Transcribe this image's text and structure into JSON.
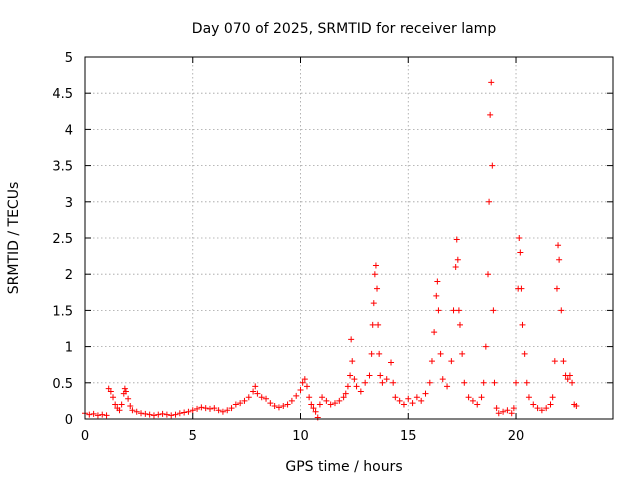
{
  "chart_data": {
    "type": "scatter",
    "title": "Day 070 of 2025, SRMTID for receiver lamp",
    "xlabel": "GPS time / hours",
    "ylabel": "SRMTID / TECUs",
    "xlim": [
      0,
      24.5
    ],
    "ylim": [
      0,
      5
    ],
    "xticks": [
      0,
      5,
      10,
      15,
      20
    ],
    "xtick_labels": [
      "0",
      "5",
      "10",
      "15",
      "20"
    ],
    "yticks": [
      0,
      0.5,
      1,
      1.5,
      2,
      2.5,
      3,
      3.5,
      4,
      4.5,
      5
    ],
    "ytick_labels": [
      "0",
      "0.5",
      "1",
      "1.5",
      "2",
      "2.5",
      "3",
      "3.5",
      "4",
      "4.5",
      "5"
    ],
    "grid": true,
    "marker": "+",
    "marker_color": "#ff0000",
    "series": [
      {
        "name": "lamp",
        "points": [
          [
            0.0,
            0.08
          ],
          [
            0.2,
            0.06
          ],
          [
            0.4,
            0.07
          ],
          [
            0.6,
            0.05
          ],
          [
            0.8,
            0.06
          ],
          [
            1.0,
            0.05
          ],
          [
            1.1,
            0.42
          ],
          [
            1.2,
            0.38
          ],
          [
            1.3,
            0.3
          ],
          [
            1.4,
            0.2
          ],
          [
            1.5,
            0.15
          ],
          [
            1.6,
            0.12
          ],
          [
            1.7,
            0.2
          ],
          [
            1.8,
            0.35
          ],
          [
            1.85,
            0.42
          ],
          [
            1.9,
            0.38
          ],
          [
            2.0,
            0.28
          ],
          [
            2.1,
            0.18
          ],
          [
            2.2,
            0.12
          ],
          [
            2.4,
            0.1
          ],
          [
            2.6,
            0.08
          ],
          [
            2.8,
            0.07
          ],
          [
            3.0,
            0.06
          ],
          [
            3.2,
            0.05
          ],
          [
            3.4,
            0.06
          ],
          [
            3.6,
            0.07
          ],
          [
            3.8,
            0.06
          ],
          [
            4.0,
            0.05
          ],
          [
            4.2,
            0.06
          ],
          [
            4.4,
            0.08
          ],
          [
            4.6,
            0.09
          ],
          [
            4.8,
            0.1
          ],
          [
            5.0,
            0.12
          ],
          [
            5.2,
            0.14
          ],
          [
            5.4,
            0.16
          ],
          [
            5.6,
            0.15
          ],
          [
            5.8,
            0.14
          ],
          [
            6.0,
            0.15
          ],
          [
            6.2,
            0.12
          ],
          [
            6.4,
            0.1
          ],
          [
            6.6,
            0.12
          ],
          [
            6.8,
            0.15
          ],
          [
            7.0,
            0.2
          ],
          [
            7.2,
            0.22
          ],
          [
            7.4,
            0.25
          ],
          [
            7.6,
            0.3
          ],
          [
            7.8,
            0.38
          ],
          [
            7.9,
            0.45
          ],
          [
            8.0,
            0.35
          ],
          [
            8.2,
            0.3
          ],
          [
            8.4,
            0.28
          ],
          [
            8.6,
            0.22
          ],
          [
            8.8,
            0.18
          ],
          [
            9.0,
            0.16
          ],
          [
            9.2,
            0.18
          ],
          [
            9.4,
            0.2
          ],
          [
            9.6,
            0.25
          ],
          [
            9.8,
            0.32
          ],
          [
            10.0,
            0.4
          ],
          [
            10.1,
            0.5
          ],
          [
            10.2,
            0.55
          ],
          [
            10.3,
            0.45
          ],
          [
            10.4,
            0.3
          ],
          [
            10.5,
            0.2
          ],
          [
            10.6,
            0.15
          ],
          [
            10.7,
            0.1
          ],
          [
            10.8,
            0.02
          ],
          [
            10.9,
            0.2
          ],
          [
            11.0,
            0.3
          ],
          [
            11.2,
            0.25
          ],
          [
            11.4,
            0.2
          ],
          [
            11.6,
            0.22
          ],
          [
            11.8,
            0.25
          ],
          [
            12.0,
            0.3
          ],
          [
            12.1,
            0.35
          ],
          [
            12.2,
            0.45
          ],
          [
            12.3,
            0.6
          ],
          [
            12.35,
            1.1
          ],
          [
            12.4,
            0.8
          ],
          [
            12.5,
            0.55
          ],
          [
            12.6,
            0.45
          ],
          [
            12.8,
            0.38
          ],
          [
            13.0,
            0.5
          ],
          [
            13.2,
            0.6
          ],
          [
            13.3,
            0.9
          ],
          [
            13.35,
            1.3
          ],
          [
            13.4,
            1.6
          ],
          [
            13.45,
            2.0
          ],
          [
            13.5,
            2.12
          ],
          [
            13.55,
            1.8
          ],
          [
            13.6,
            1.3
          ],
          [
            13.65,
            0.9
          ],
          [
            13.7,
            0.6
          ],
          [
            13.8,
            0.5
          ],
          [
            14.0,
            0.55
          ],
          [
            14.2,
            0.78
          ],
          [
            14.3,
            0.5
          ],
          [
            14.4,
            0.3
          ],
          [
            14.6,
            0.25
          ],
          [
            14.8,
            0.2
          ],
          [
            15.0,
            0.28
          ],
          [
            15.2,
            0.22
          ],
          [
            15.4,
            0.3
          ],
          [
            15.6,
            0.25
          ],
          [
            15.8,
            0.35
          ],
          [
            16.0,
            0.5
          ],
          [
            16.1,
            0.8
          ],
          [
            16.2,
            1.2
          ],
          [
            16.3,
            1.7
          ],
          [
            16.35,
            1.9
          ],
          [
            16.4,
            1.5
          ],
          [
            16.5,
            0.9
          ],
          [
            16.6,
            0.55
          ],
          [
            16.8,
            0.45
          ],
          [
            17.0,
            0.8
          ],
          [
            17.1,
            1.5
          ],
          [
            17.2,
            2.1
          ],
          [
            17.25,
            2.48
          ],
          [
            17.3,
            2.2
          ],
          [
            17.35,
            1.5
          ],
          [
            17.4,
            1.3
          ],
          [
            17.5,
            0.9
          ],
          [
            17.6,
            0.5
          ],
          [
            17.8,
            0.3
          ],
          [
            18.0,
            0.25
          ],
          [
            18.2,
            0.2
          ],
          [
            18.4,
            0.3
          ],
          [
            18.5,
            0.5
          ],
          [
            18.6,
            1.0
          ],
          [
            18.7,
            2.0
          ],
          [
            18.75,
            3.0
          ],
          [
            18.8,
            4.2
          ],
          [
            18.85,
            4.65
          ],
          [
            18.9,
            3.5
          ],
          [
            18.95,
            1.5
          ],
          [
            19.0,
            0.5
          ],
          [
            19.1,
            0.15
          ],
          [
            19.2,
            0.08
          ],
          [
            19.4,
            0.1
          ],
          [
            19.6,
            0.12
          ],
          [
            19.8,
            0.08
          ],
          [
            19.9,
            0.15
          ],
          [
            20.0,
            0.5
          ],
          [
            20.1,
            1.8
          ],
          [
            20.15,
            2.5
          ],
          [
            20.2,
            2.3
          ],
          [
            20.25,
            1.8
          ],
          [
            20.3,
            1.3
          ],
          [
            20.4,
            0.9
          ],
          [
            20.5,
            0.5
          ],
          [
            20.6,
            0.3
          ],
          [
            20.8,
            0.2
          ],
          [
            21.0,
            0.15
          ],
          [
            21.2,
            0.12
          ],
          [
            21.4,
            0.15
          ],
          [
            21.6,
            0.2
          ],
          [
            21.7,
            0.3
          ],
          [
            21.8,
            0.8
          ],
          [
            21.9,
            1.8
          ],
          [
            21.95,
            2.4
          ],
          [
            22.0,
            2.2
          ],
          [
            22.1,
            1.5
          ],
          [
            22.2,
            0.8
          ],
          [
            22.3,
            0.6
          ],
          [
            22.4,
            0.55
          ],
          [
            22.5,
            0.6
          ],
          [
            22.6,
            0.5
          ],
          [
            22.7,
            0.2
          ],
          [
            22.8,
            0.18
          ]
        ]
      }
    ]
  }
}
